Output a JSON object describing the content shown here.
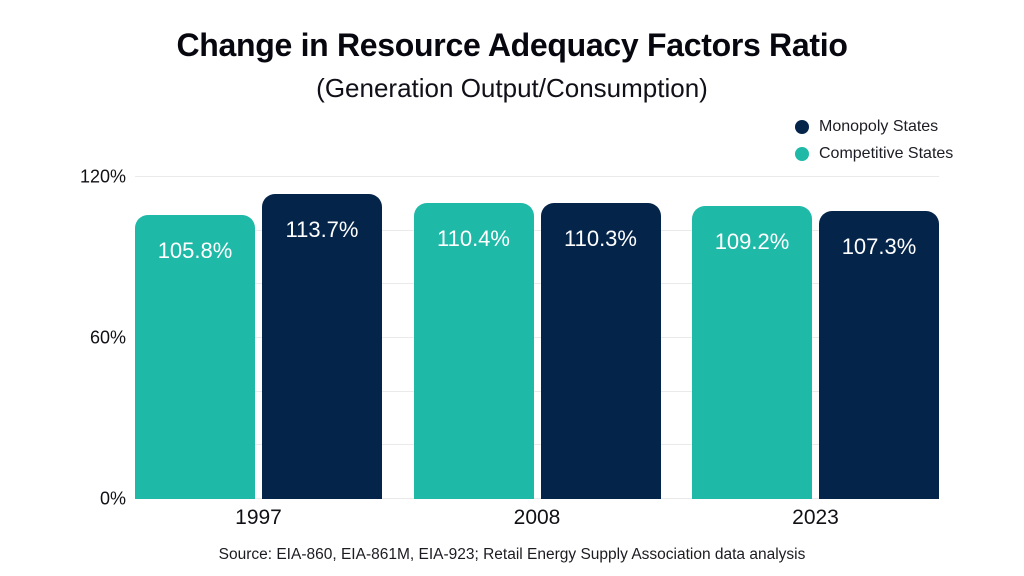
{
  "header": {
    "title": "Change in Resource Adequacy Factors Ratio",
    "subtitle": "(Generation Output/Consumption)"
  },
  "legend": {
    "position": "top-right",
    "items": [
      {
        "label": "Monopoly States",
        "color": "#04244a"
      },
      {
        "label": "Competitive States",
        "color": "#1fb9a8"
      }
    ]
  },
  "footer": {
    "source": "Source: EIA-860, EIA-861M, EIA-923; Retail Energy Supply Association data analysis"
  },
  "chart_data": {
    "type": "bar",
    "title": "Change in Resource Adequacy Factors Ratio",
    "subtitle": "(Generation Output/Consumption)",
    "categories": [
      "1997",
      "2008",
      "2023"
    ],
    "series": [
      {
        "name": "Competitive States",
        "color": "#1fb9a8",
        "values": [
          105.8,
          110.4,
          109.2
        ],
        "data_labels": [
          "105.8%",
          "110.4%",
          "109.2%"
        ]
      },
      {
        "name": "Monopoly States",
        "color": "#04244a",
        "values": [
          113.7,
          110.3,
          107.3
        ],
        "data_labels": [
          "113.7%",
          "110.3%",
          "107.3%"
        ]
      }
    ],
    "bar_order_in_group": [
      "Competitive States",
      "Monopoly States"
    ],
    "xlabel": "",
    "ylabel": "",
    "ylim": [
      0,
      120
    ],
    "y_ticks": [
      {
        "value": 120,
        "label": "120%"
      },
      {
        "value": 60,
        "label": "60%"
      },
      {
        "value": 0,
        "label": "0%"
      }
    ],
    "gridline_step": 20,
    "grid": true,
    "legend_position": "top-right",
    "data_label_color": "#ffffff"
  }
}
